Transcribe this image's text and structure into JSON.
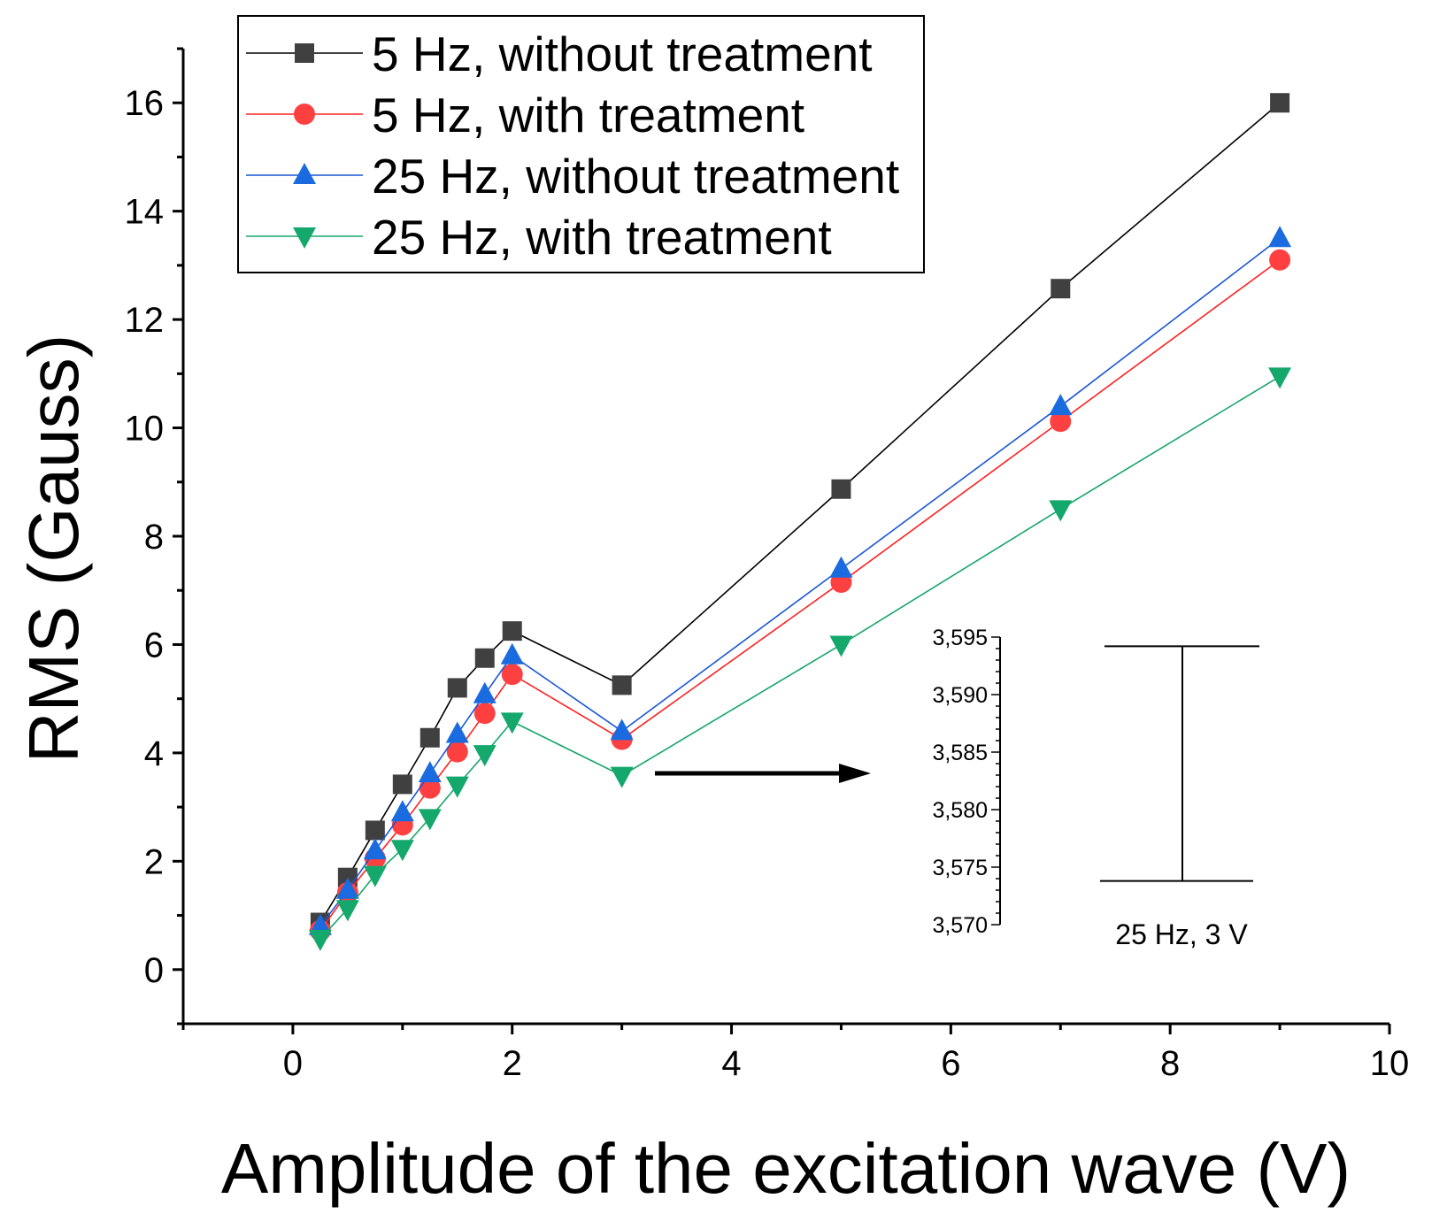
{
  "chart_data": {
    "type": "line",
    "title": "",
    "xlabel": "Amplitude of the excitation wave (V)",
    "ylabel": "RMS (Gauss)",
    "xlim": [
      -1,
      10
    ],
    "ylim": [
      -1,
      17
    ],
    "x_ticks": [
      "0",
      "2",
      "4",
      "6",
      "8",
      "10"
    ],
    "y_ticks": [
      "0",
      "2",
      "4",
      "6",
      "8",
      "10",
      "12",
      "14",
      "16"
    ],
    "x": [
      0.25,
      0.5,
      0.75,
      1,
      1.25,
      1.5,
      1.75,
      2,
      3,
      5,
      7,
      9
    ],
    "legend_position": "top-left",
    "series": [
      {
        "name": "5 Hz, without treatment",
        "color": "#000000",
        "marker_color": "#404040",
        "marker": "square",
        "values": [
          0.87,
          1.7,
          2.57,
          3.42,
          4.28,
          5.2,
          5.75,
          6.25,
          5.25,
          8.87,
          12.57,
          16.0
        ]
      },
      {
        "name": "5 Hz, with treatment",
        "color": "#ff2020",
        "marker_color": "#ff4040",
        "marker": "circle",
        "values": [
          0.72,
          1.42,
          2.05,
          2.67,
          3.35,
          4.02,
          4.73,
          5.45,
          4.25,
          7.15,
          10.12,
          13.1
        ]
      },
      {
        "name": "25 Hz, without treatment",
        "color": "#1a56d6",
        "marker_color": "#1a6be0",
        "marker": "triangle-up",
        "values": [
          0.8,
          1.47,
          2.2,
          2.9,
          3.62,
          4.35,
          5.08,
          5.8,
          4.4,
          7.4,
          10.4,
          13.5
        ]
      },
      {
        "name": "25 Hz, with treatment",
        "color": "#17a56a",
        "marker_color": "#14a86c",
        "marker": "triangle-down",
        "values": [
          0.57,
          1.12,
          1.75,
          2.23,
          2.8,
          3.4,
          3.98,
          4.58,
          3.58,
          6.0,
          8.5,
          10.95
        ]
      }
    ],
    "inset": {
      "y_ticks": [
        "3,570",
        "3,575",
        "3,580",
        "3,585",
        "3,590",
        "3,595"
      ],
      "ylim": [
        3.57,
        3.595
      ],
      "errorbar_low": 3.5738,
      "errorbar_high": 3.5942,
      "caption": "25 Hz, 3 V"
    }
  }
}
